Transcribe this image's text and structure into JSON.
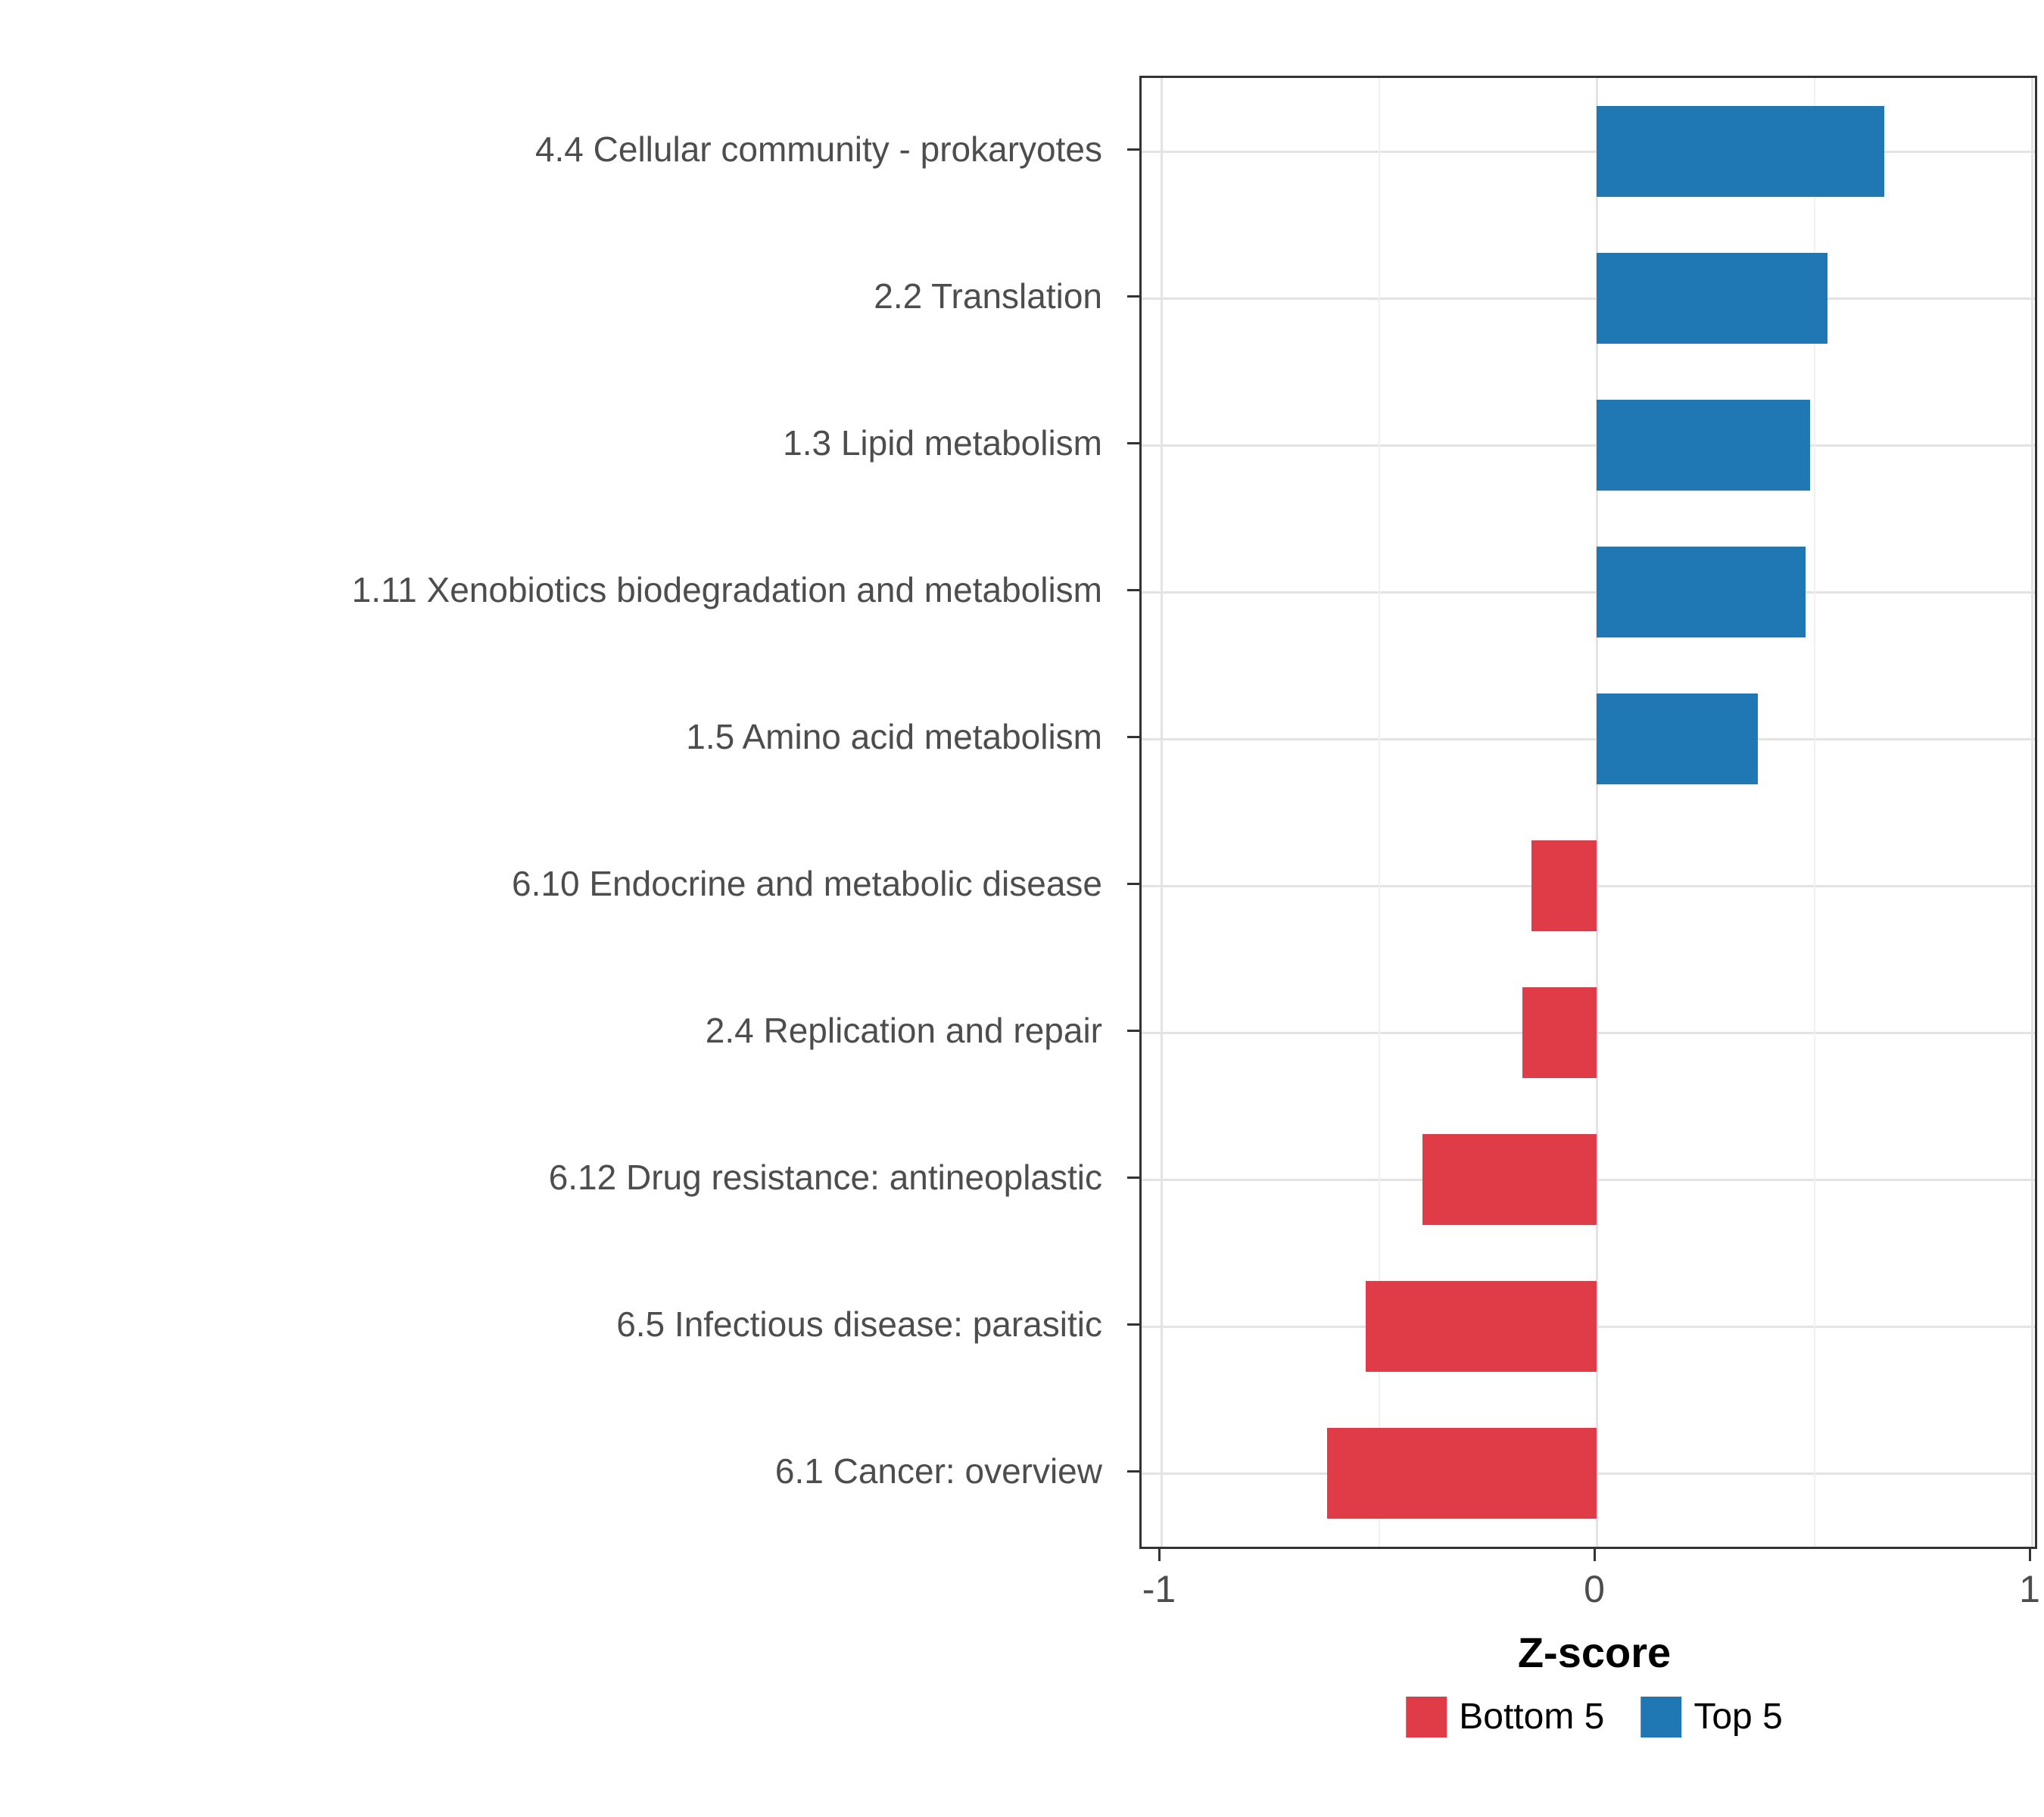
{
  "chart_data": {
    "type": "bar",
    "orientation": "horizontal",
    "title": "",
    "xlabel": "Z-score",
    "ylabel": "",
    "x_axis": {
      "min": -1,
      "max": 1,
      "major_ticks": [
        -1,
        0,
        1
      ],
      "minor_ticks": [
        -0.5,
        0.5
      ],
      "tick_labels": [
        "-1",
        "0",
        "1"
      ]
    },
    "categories": [
      "4.4 Cellular community - prokaryotes",
      "2.2 Translation",
      "1.3 Lipid metabolism",
      "1.11 Xenobiotics biodegradation and metabolism",
      "1.5 Amino acid metabolism",
      "6.10 Endocrine and metabolic disease",
      "2.4 Replication and repair",
      "6.12 Drug resistance: antineoplastic",
      "6.5 Infectious disease: parasitic",
      "6.1 Cancer: overview"
    ],
    "values": [
      0.66,
      0.53,
      0.49,
      0.48,
      0.37,
      -0.15,
      -0.17,
      -0.4,
      -0.53,
      -0.62
    ],
    "groups": [
      "Top 5",
      "Top 5",
      "Top 5",
      "Top 5",
      "Top 5",
      "Bottom 5",
      "Bottom 5",
      "Bottom 5",
      "Bottom 5",
      "Bottom 5"
    ],
    "legend": [
      {
        "label": "Bottom 5",
        "color": "#E03C47"
      },
      {
        "label": "Top 5",
        "color": "#1F78B4"
      }
    ],
    "legend_position": "bottom",
    "grid": true
  },
  "colors": {
    "bottom5": "#E03C47",
    "top5": "#1F78B4",
    "grid_major": "#E3E3E3",
    "grid_minor": "#F0F0F0",
    "panel_border": "#333333",
    "axis_text": "#4D4D4D"
  }
}
